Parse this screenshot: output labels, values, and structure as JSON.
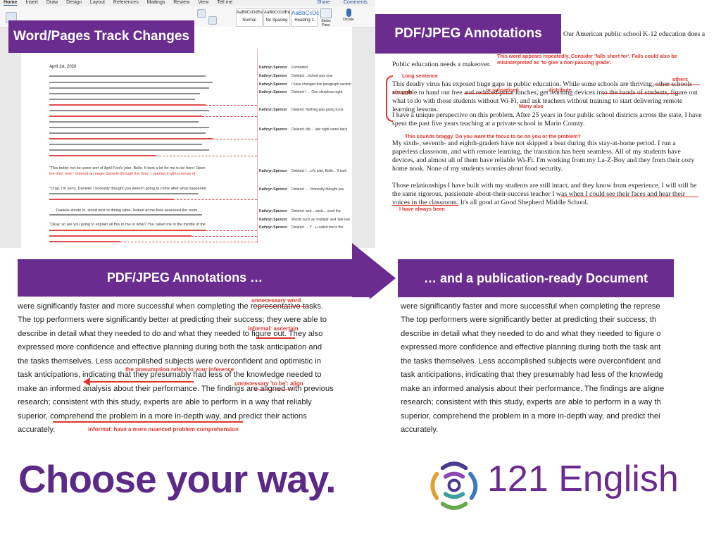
{
  "labels": {
    "word_track_changes": "Word/Pages Track Changes",
    "pdf_annotations_top": "PDF/JPEG Annotations",
    "pdf_annotations_bottom": "PDF/JPEG Annotations …",
    "publication_ready": "… and a publication-ready Document"
  },
  "word": {
    "tabs": [
      "Home",
      "Insert",
      "Draw",
      "Design",
      "Layout",
      "References",
      "Mailings",
      "Review",
      "View",
      "Tell me"
    ],
    "share": "Share",
    "comments": "Comments",
    "styles": [
      {
        "preview": "AaBbCcDdEe",
        "name": "Normal"
      },
      {
        "preview": "AaBbCcDdEe",
        "name": "No Spacing"
      },
      {
        "preview": "AaBbCcDc",
        "name": "Heading 1"
      }
    ],
    "styles_pane": "Styles Pane",
    "dictate": "Dictate",
    "date": "April 1st, 2020",
    "paragraphs": [
      "\"This better not be some sort of April Fool's joke, Belle. It took a lot for me to be here! Open",
      "the door now,\" ordered an eager Daniele through the door. I opened it with a sense of",
      "\"Crap, I'm sorry, Daniele! I honestly thought you weren't going to come after what happened",
      "Daniele strode in, stood next to dining table, looked at me then assessed the room,",
      "\"Okay, so are you going to explain all this to me or what? You called me in the middle of the"
    ],
    "comments_list": [
      {
        "author": "Kathryn Spencer",
        "text": "Formatted"
      },
      {
        "author": "Kathryn Spencer",
        "text": "Deleted: ...itched was now"
      },
      {
        "author": "Kathryn Spencer",
        "text": "I have changed this paragraph section"
      },
      {
        "author": "Kathryn Spencer",
        "text": "Deleted: I ... One sleepless night"
      },
      {
        "author": "Kathryn Spencer",
        "text": "Deleted: Nothing was going to be"
      },
      {
        "author": "Kathryn Spencer",
        "text": "Deleted: did ... last night came back"
      },
      {
        "author": "Kathryn Spencer",
        "text": "Deleted: I ...ol's joke, Belle... It took"
      },
      {
        "author": "Kathryn Spencer",
        "text": "Deleted: ... I honestly thought you"
      },
      {
        "author": "Kathryn Spencer",
        "text": "Deleted: and... assic... ssed the"
      },
      {
        "author": "Kathryn Spencer",
        "text": "Words such as 'multiple' and 'late last"
      },
      {
        "author": "Kathryn Spencer",
        "text": "Deleted: ... Y ...u called me in the"
      }
    ]
  },
  "pdf_top": {
    "heading_tail": "Our American public school K-12 education does a",
    "note_word_repeats": "This word appears repeatedly. Consider 'falls short for'. Fails could also be misinterpreted as 'to give a non-passing grade'.",
    "line_makeover": "Public education needs a makeover.",
    "note_long_sentence": "Long sentence",
    "note_others": "others",
    "note_struggle": "struggle",
    "note_or_subsidised": "or subsidised",
    "note_distribute": "distribute",
    "note_many_also": "Many also",
    "para1": "This deadly virus has exposed huge gaps in public education. While some schools are thriving, other schools scramble to hand out free and reduced-price lunches, get learning devices into the hands of students, figure out what to do with those students without Wi-Fi, and ask teachers without training to start delivering remote learning lessons.",
    "para2": "I have a unique perspective on this problem. After 25 years in four public school districts across the state, I have spent the past five years teaching at a private school in Marin County.",
    "note_braggy": "This sounds braggy. Do you want the focus to be on you or the problem?",
    "para3": "My sixth-, seventh- and eighth-graders have not skipped a beat during this stay-at-home period. I run a paperless classroom, and with remote learning, the transition has been seamless. All of my students have devices, and almost all of them have reliable Wi-Fi. I'm working from my La-Z-Boy and they from their cozy home nook. None of my students worries about food security.",
    "para4": "Those relationships I have built with my students are still intact, and they know from experience, I will still be the same rigorous, passionate-about-their-success teacher I was when I could see their faces and hear their voices in the classroom. It's all good at Good Shepherd Middle School.",
    "note_always_been": "I have always been"
  },
  "annotated": {
    "lines": [
      "were significantly faster and more successful when completing the representative tasks.",
      "The top performers were significantly better at predicting their success; they were able to",
      "describe in detail what they needed to do and what they needed to figure out. They also",
      "expressed more confidence and effective planning during both the task anticipation and",
      "the tasks themselves. Less accomplished subjects were overconfident and optimistic in",
      "task anticipations, indicating that they presumably had less of the knowledge needed to",
      "make an informed analysis about their performance. The findings are aligned with previous",
      "research; consistent with this study, experts are able to perform in a way that reliably",
      "superior, comprehend the problem in a more in-depth way, and predict their actions",
      "accurately."
    ],
    "note_unnecessary_word": "unnecessary word",
    "note_informal_ascertain": "informal: ascertain",
    "note_presumption": "the presumption refers to your inference",
    "note_to_be": "unnecessary 'to be': align",
    "note_nuanced": "informal: have a more nuanced problem comprehension"
  },
  "final": {
    "lines": [
      "were significantly faster and more successful when completing the represe",
      "The top performers were significantly better at predicting their success; th",
      "describe in detail what they needed to do and what they needed to figure o",
      "expressed more confidence and effective planning during both the task ant",
      "the tasks themselves. Less accomplished subjects were overconfident and",
      "task anticipations, indicating that they presumably had less of the knowledg",
      "make an informed analysis about their performance. The findings are aligne",
      "research; consistent with this study, experts are able to perform in a way th",
      "superior, comprehend the problem in a more in-depth way, and predict thei",
      "accurately."
    ]
  },
  "footer": {
    "tagline": "Choose your way.",
    "brand": "121 English"
  },
  "colors": {
    "purple": "#6a2c8f",
    "annotation_red": "#e0352b",
    "tagline_purple": "#5c2a86"
  },
  "icons": [
    "logo-icon",
    "dictate-icon",
    "styles-pane-icon",
    "arrow-right-icon"
  ]
}
